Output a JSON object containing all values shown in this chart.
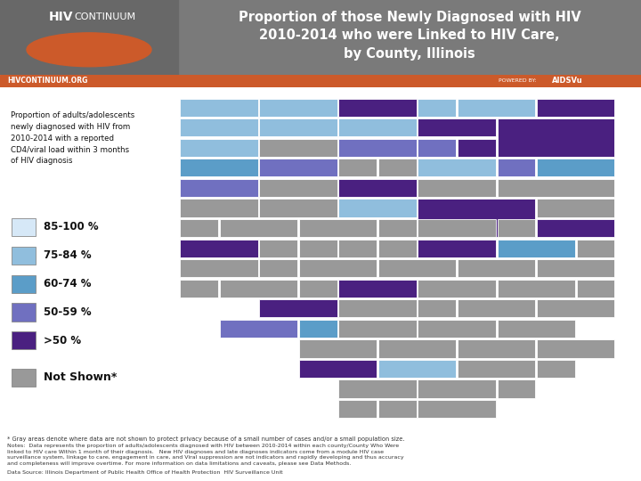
{
  "title_line1": "Proportion of those Newly Diagnosed with HIV",
  "title_line2": "2010-2014 who were Linked to HIV Care,",
  "title_line3": "by County, Illinois",
  "header_bg_color": "#7a7a7a",
  "header_title_color": "#ffffff",
  "orange_bar_color": "#cc5a2a",
  "orange_bar_text": "HIVCONTINUUM.ORG",
  "description_text": "Proportion of adults/adolescents\nnewly diagnosed with HIV from\n2010-2014 with a reported\nCD4/viral load within 3 months\nof HIV diagnosis",
  "legend_items": [
    {
      "label": "85-100 %",
      "color": "#d6e8f7"
    },
    {
      "label": "75-84 %",
      "color": "#90bedd"
    },
    {
      "label": "60-74 %",
      "color": "#5b9dc8"
    },
    {
      "label": "50-59 %",
      "color": "#7070c0"
    },
    {
      "label": ">50 %",
      "color": "#4a2080"
    }
  ],
  "not_shown_color": "#999999",
  "not_shown_label": "Not Shown*",
  "footnote1": "* Gray areas denote where data are not shown to protect privacy because of a small number of cases and/or a small population size.",
  "footnote2": "Notes:  Data represents the proportion of adults/adolescents diagnosed with HIV between 2010-2014 within each county/County Who Were\nlinked to HIV care Within 1 month of their diagnosis.   New HIV diagnoses and late diagnoses indicators come from a module HIV case\nsurveillance system, linkage to care, engagement in care, and Viral suppression are not indicators and rapidly developing and thus accuracy\nand completeness will improve overtime. For more information on data limitations and caveats, please see Data Methods.",
  "footnote3": "Data Source: Illinois Department of Public Health Office of Health Protection  HIV Surveillance Unit",
  "bg_color": "#ffffff",
  "county_colors": {
    "Cook": "#4a2080",
    "DuPage": "#4a2080",
    "Lake": "#4a2080",
    "Will": "#4a2080",
    "Kane": "#4a2080",
    "McHenry": "#90bedd",
    "Winnebago": "#4a2080",
    "Champaign": "#4a2080",
    "Sangamon": "#4a2080",
    "Peoria": "#4a2080",
    "McLean": "#4a2080",
    "St. Clair": "#4a2080",
    "Madison": "#4a2080",
    "Rock Island": "#5b9dc8",
    "Whiteside": "#90bedd",
    "Ogle": "#90bedd",
    "DeKalb": "#90bedd",
    "LaSalle": "#90bedd",
    "Tazewell": "#90bedd",
    "Vermilion": "#5b9dc8",
    "Macon": "#5b9dc8",
    "Kankakee": "#5b9dc8",
    "Grundy": "#7070c0",
    "Kendall": "#7070c0",
    "Bureau": "#7070c0",
    "Henry": "#7070c0",
    "Mercer": "#7070c0",
    "Stephenson": "#90bedd",
    "Carroll": "#90bedd",
    "Jo Daviess": "#90bedd",
    "Boone": "#90bedd",
    "Adams": "#4a2080",
    "Jackson": "#4a2080",
    "Williamson": "#90bedd",
    "Monroe": "#7070c0",
    "Randolph": "#5b9dc8"
  }
}
